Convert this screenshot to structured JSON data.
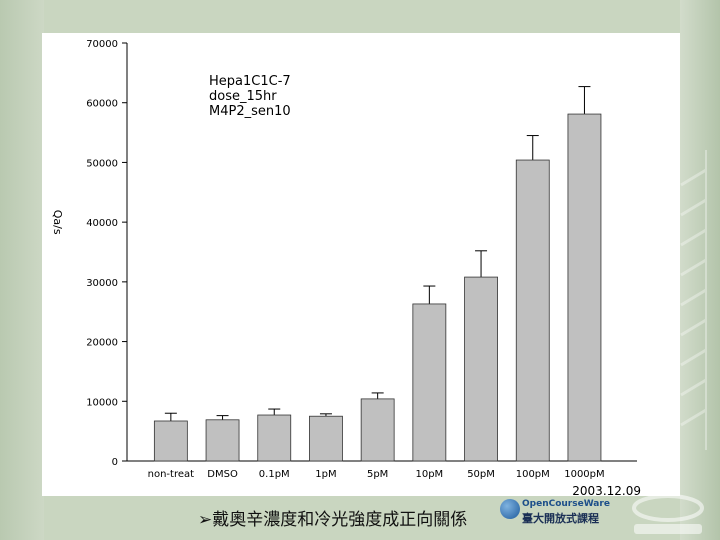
{
  "chart_data": {
    "type": "bar",
    "categories": [
      "non-treat",
      "DMSO",
      "0.1pM",
      "1pM",
      "5pM",
      "10pM",
      "50pM",
      "100pM",
      "1000pM"
    ],
    "values": [
      6700,
      6900,
      7700,
      7500,
      10400,
      26300,
      30800,
      50400,
      58100
    ],
    "errors": [
      1300,
      700,
      1000,
      400,
      1000,
      3000,
      4400,
      4100,
      4600
    ],
    "ylabel": "Qa/s",
    "ylim": [
      0,
      70000
    ],
    "yticks": [
      "0",
      "10000",
      "20000",
      "30000",
      "40000",
      "50000",
      "60000",
      "70000"
    ],
    "annotation": [
      "Hepa1C1C-7",
      "dose_15hr",
      "M4P2_sen10"
    ],
    "date": "2003.12.09",
    "grid": false,
    "bar_color": "#c0c0c0"
  },
  "caption": "➢戴奧辛濃度和冷光強度成正向關係",
  "logo": {
    "line1": "OpenCourseWare",
    "line2": "臺大開放式課程"
  },
  "colors": {
    "background": "#c9d6c0",
    "panel": "#ffffff",
    "bars": "#c0c0c0"
  }
}
